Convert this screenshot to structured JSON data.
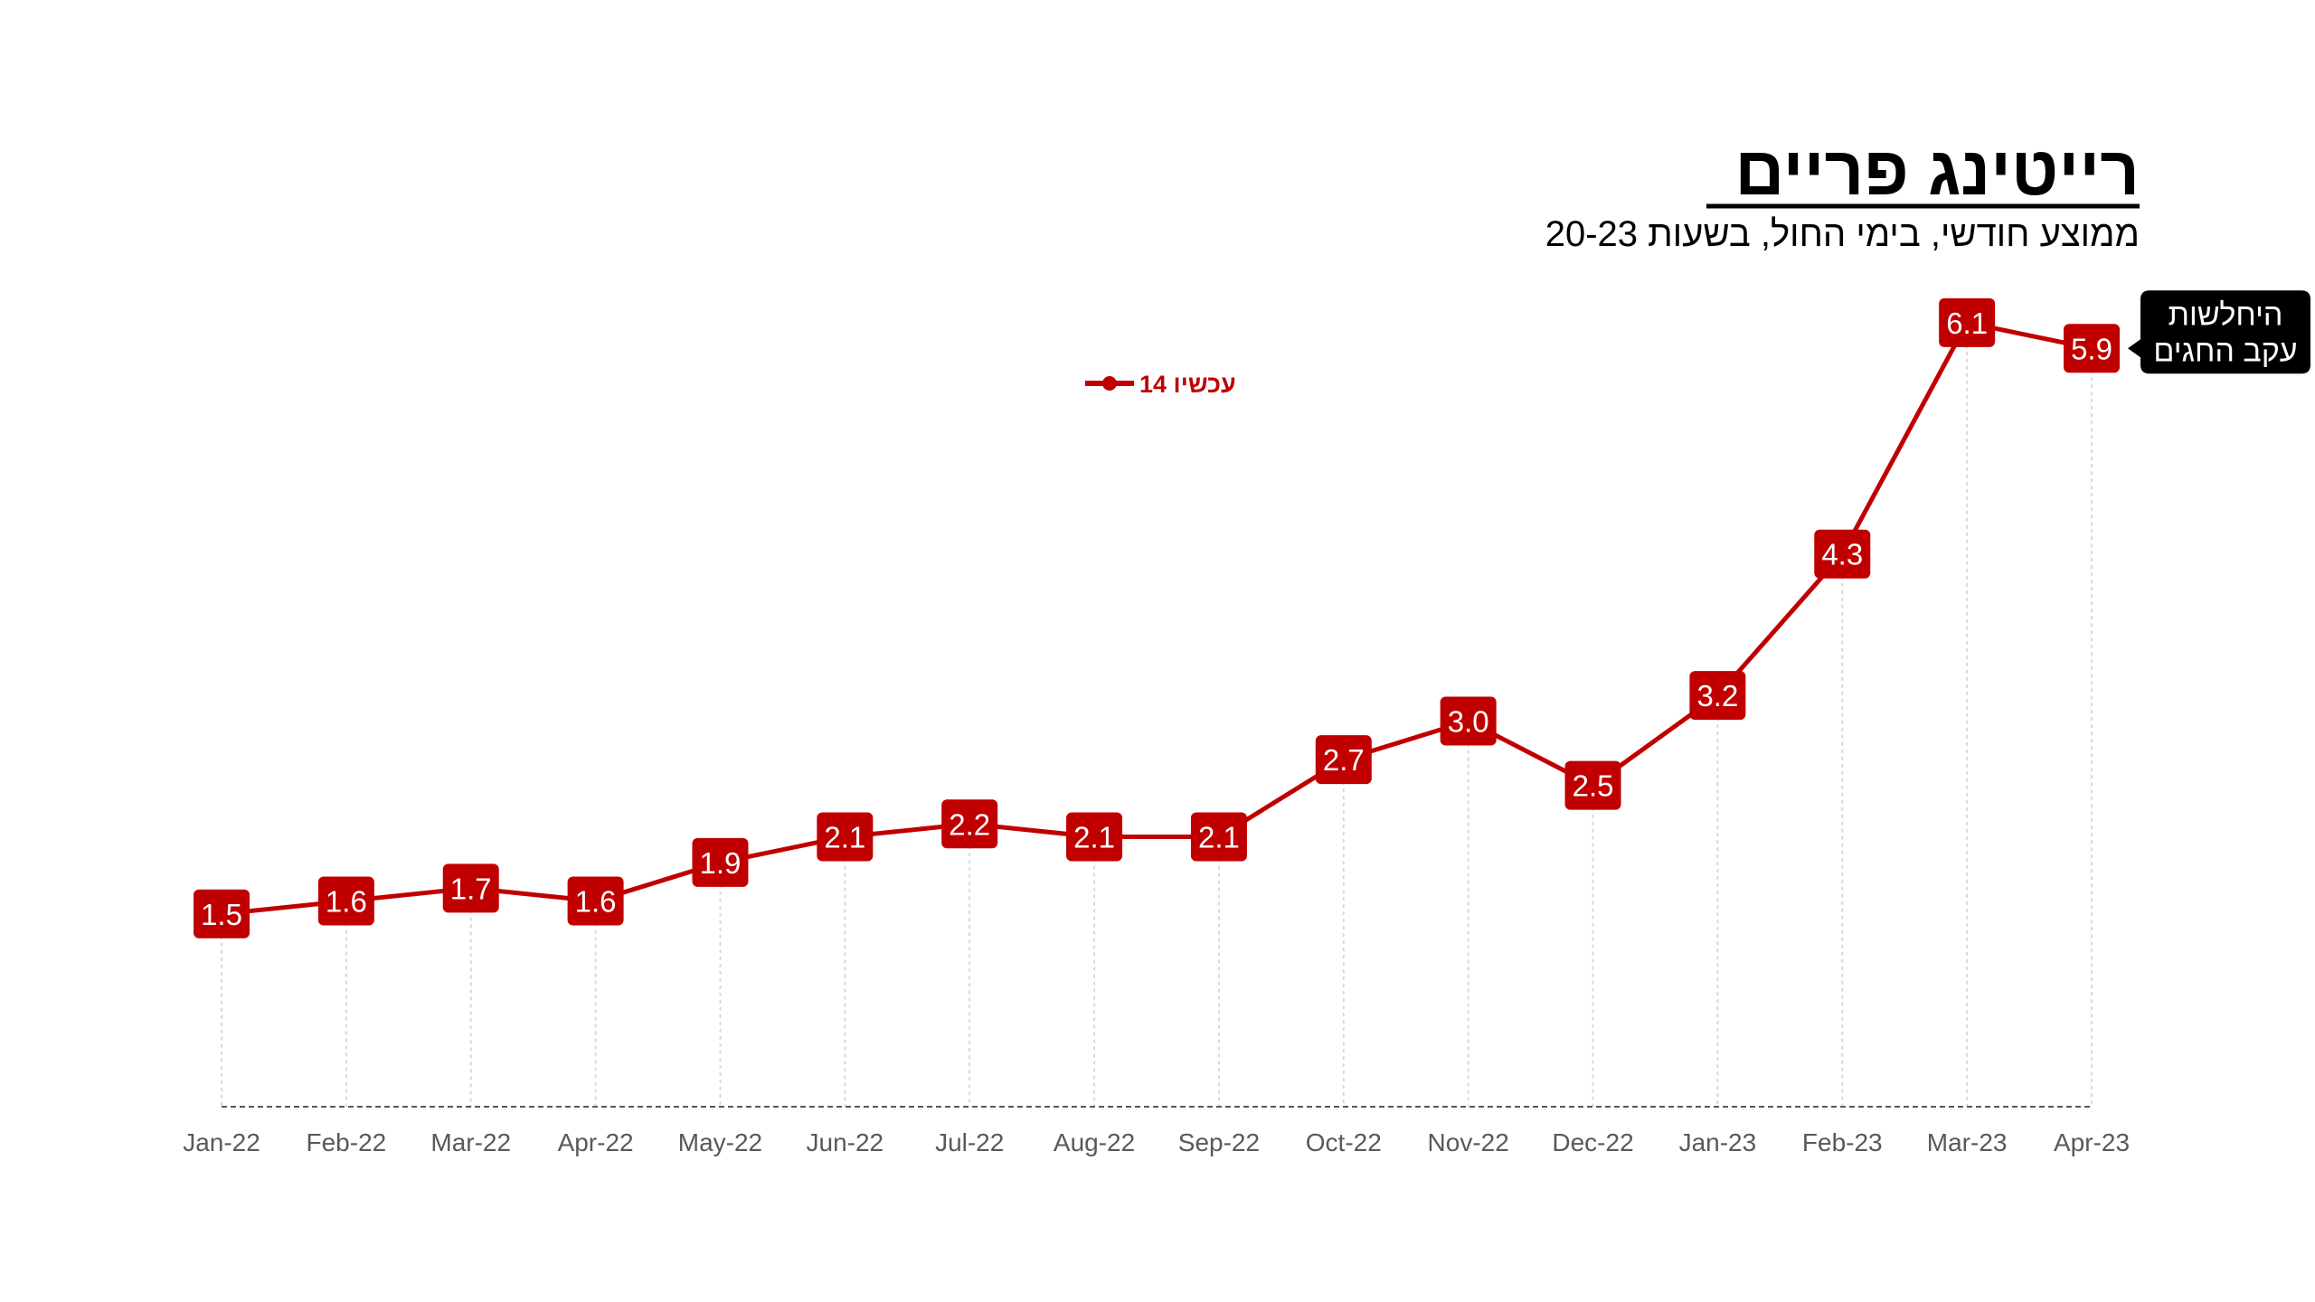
{
  "chart_data": {
    "type": "line",
    "title": "רייטינג פריים",
    "subtitle": "ממוצע חודשי, בימי החול, בשעות 20-23",
    "categories": [
      "Jan-22",
      "Feb-22",
      "Mar-22",
      "Apr-22",
      "May-22",
      "Jun-22",
      "Jul-22",
      "Aug-22",
      "Sep-22",
      "Oct-22",
      "Nov-22",
      "Dec-22",
      "Jan-23",
      "Feb-23",
      "Mar-23",
      "Apr-23"
    ],
    "series": [
      {
        "name": "עכשיו 14",
        "values": [
          1.5,
          1.6,
          1.7,
          1.6,
          1.9,
          2.1,
          2.2,
          2.1,
          2.1,
          2.7,
          3.0,
          2.5,
          3.2,
          4.3,
          6.1,
          5.9
        ],
        "labels": [
          "1.5",
          "1.6",
          "1.7",
          "1.6",
          "1.9",
          "2.1",
          "2.2",
          "2.1",
          "2.1",
          "2.7",
          "3.0",
          "2.5",
          "3.2",
          "4.3",
          "6.1",
          "5.9"
        ]
      }
    ],
    "annotation": {
      "category": "Apr-23",
      "lines": [
        "היחלשות",
        "עקב החגים"
      ]
    },
    "ylim": [
      0,
      6.5
    ],
    "legend_position": "top-center",
    "grid": false,
    "colors": {
      "series": "#c00000",
      "label_box": "#c00000",
      "label_text": "#ffffff",
      "callout_box": "#000000",
      "callout_text": "#ffffff",
      "title": "#000000",
      "axis": "#595959",
      "drop_lines": "#d9d9d9"
    }
  }
}
